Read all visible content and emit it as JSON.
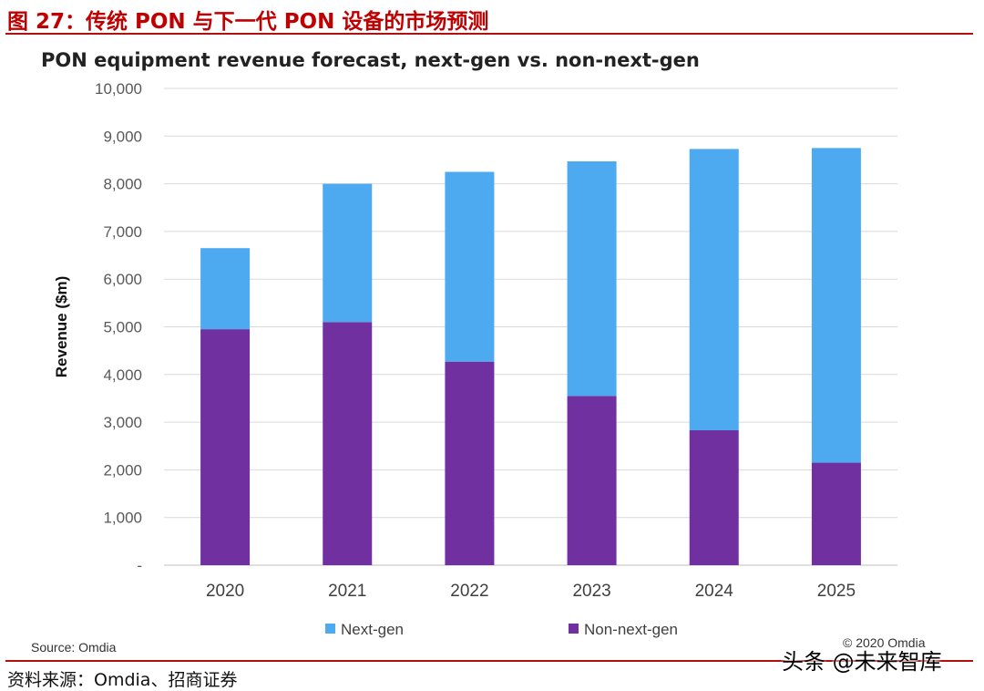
{
  "figure": {
    "header": "图 27：传统 PON 与下一代 PON 设备的市场预测",
    "caption": "资料来源：Omdia、招商证券",
    "watermark": "头条 @未来智库"
  },
  "chart_data": {
    "type": "bar",
    "stacked": true,
    "title": "PON equipment revenue forecast, next-gen vs. non-next-gen",
    "xlabel": "",
    "ylabel": "Revenue ($m)",
    "ylim": [
      0,
      10000
    ],
    "yticks": [
      "-",
      "1,000",
      "2,000",
      "3,000",
      "4,000",
      "5,000",
      "6,000",
      "7,000",
      "8,000",
      "9,000",
      "10,000"
    ],
    "categories": [
      "2020",
      "2021",
      "2022",
      "2023",
      "2024",
      "2025"
    ],
    "series": [
      {
        "name": "Non-next-gen",
        "color": "#7030a0",
        "values": [
          4950,
          5100,
          4270,
          3550,
          2830,
          2150
        ]
      },
      {
        "name": "Next-gen",
        "color": "#4daaf0",
        "values": [
          1700,
          2900,
          3980,
          4920,
          5900,
          6600
        ]
      }
    ],
    "legend_order": [
      "Next-gen",
      "Non-next-gen"
    ],
    "legend_position": "bottom",
    "grid": true,
    "source": "Source: Omdia",
    "copyright": "© 2020 Omdia"
  }
}
